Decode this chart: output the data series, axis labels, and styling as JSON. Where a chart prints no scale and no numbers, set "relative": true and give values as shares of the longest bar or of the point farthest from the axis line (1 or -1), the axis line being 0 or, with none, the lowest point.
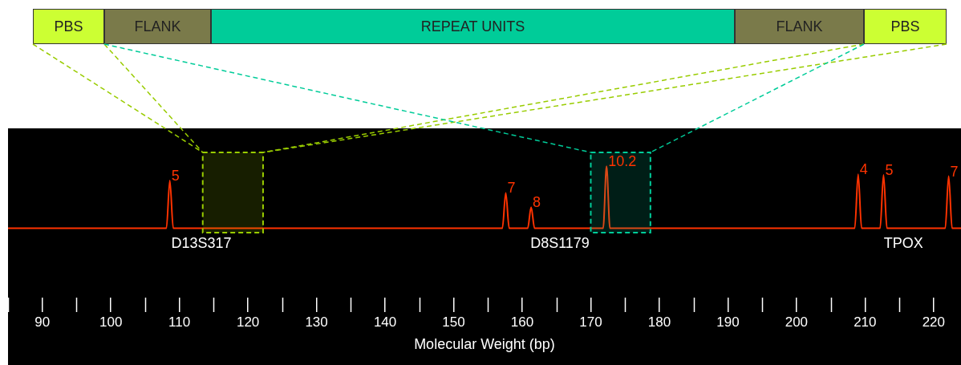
{
  "chart_data": {
    "type": "line",
    "relative": true,
    "xlabel": "Molecular Weight (bp)",
    "marker": "none",
    "xlim": [
      85,
      224
    ],
    "xticks": [
      90,
      100,
      110,
      120,
      130,
      140,
      150,
      160,
      170,
      180,
      190,
      200,
      210,
      220
    ],
    "series": [
      {
        "color": "#ff3300",
        "x": [
          85,
          108.1,
          108.6,
          109.1,
          157.1,
          157.6,
          158.1,
          160.8,
          161.3,
          161.8,
          171.8,
          172.3,
          172.8,
          208.5,
          209.0,
          209.5,
          212.2,
          212.7,
          213.2,
          221.7,
          222.2,
          222.7,
          224
        ],
        "values": [
          0,
          0,
          0.77,
          0,
          0,
          0.57,
          0,
          0,
          0.34,
          0,
          0,
          1,
          0,
          0,
          0.87,
          0,
          0,
          0.86,
          0,
          0,
          0.84,
          0,
          0
        ]
      }
    ],
    "bands": [
      {
        "axis": "x",
        "from": 113.4,
        "to": 122.2,
        "color": "#99cc00"
      },
      {
        "axis": "x",
        "from": 170.0,
        "to": 178.7,
        "color": "#00cc99"
      }
    ],
    "annotations": [
      {
        "text": "5",
        "x": 108.6,
        "y": 0.77
      },
      {
        "text": "7",
        "x": 157.6,
        "y": 0.57
      },
      {
        "text": "8",
        "x": 161.3,
        "y": 0.34
      },
      {
        "text": "10.2",
        "x": 172.3,
        "y": 1
      },
      {
        "text": "4",
        "x": 209.0,
        "y": 0.87
      },
      {
        "text": "5",
        "x": 212.7,
        "y": 0.86
      },
      {
        "text": "7",
        "x": 222.2,
        "y": 0.84
      },
      {
        "text": "D13S317",
        "x": 113.2,
        "y": 0
      },
      {
        "text": "D8S1179",
        "x": 165.5,
        "y": 0
      },
      {
        "text": "TPOX",
        "x": 215.6,
        "y": 0
      },
      "PBS",
      "FLANK",
      "REPEAT UNITS",
      "FLANK",
      "PBS"
    ]
  }
}
